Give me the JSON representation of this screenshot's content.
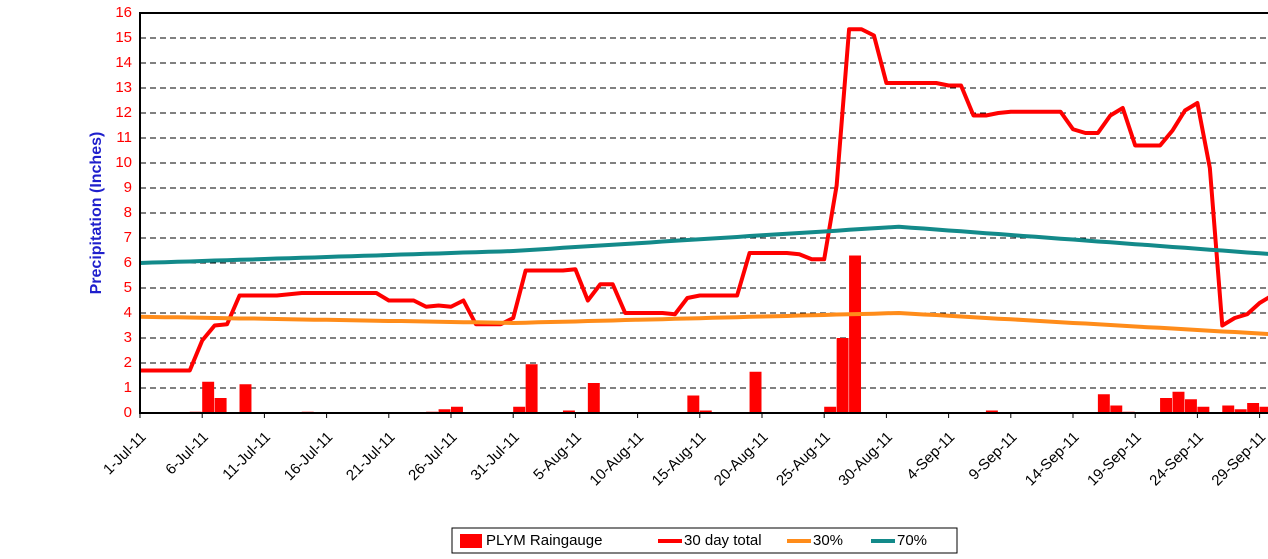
{
  "chart_data": {
    "type": "combo",
    "ylabel": "Precipitation (Inches)",
    "categories": [
      "1-Jul-11",
      null,
      null,
      null,
      null,
      "6-Jul-11",
      null,
      null,
      null,
      null,
      "11-Jul-11",
      null,
      null,
      null,
      null,
      "16-Jul-11",
      null,
      null,
      null,
      null,
      "21-Jul-11",
      null,
      null,
      null,
      null,
      "26-Jul-11",
      null,
      null,
      null,
      null,
      "31-Jul-11",
      null,
      null,
      null,
      null,
      "5-Aug-11",
      null,
      null,
      null,
      null,
      "10-Aug-11",
      null,
      null,
      null,
      null,
      "15-Aug-11",
      null,
      null,
      null,
      null,
      "20-Aug-11",
      null,
      null,
      null,
      null,
      "25-Aug-11",
      null,
      null,
      null,
      null,
      "30-Aug-11",
      null,
      null,
      null,
      null,
      "4-Sep-11",
      null,
      null,
      null,
      null,
      "9-Sep-11",
      null,
      null,
      null,
      null,
      "14-Sep-11",
      null,
      null,
      null,
      null,
      "19-Sep-11",
      null,
      null,
      null,
      null,
      "24-Sep-11",
      null,
      null,
      null,
      null,
      "29-Sep-11",
      null
    ],
    "series": [
      {
        "name": "PLYM Raingauge",
        "type": "bar",
        "color": "#ff0000",
        "values": [
          0,
          0,
          0,
          0,
          0.05,
          1.25,
          0.6,
          0,
          1.15,
          0,
          0,
          0,
          0,
          0.05,
          0,
          0,
          0,
          0,
          0,
          0,
          0,
          0,
          0,
          0.05,
          0.15,
          0.25,
          0,
          0,
          0,
          0,
          0.25,
          1.95,
          0,
          0,
          0.1,
          0,
          1.2,
          0,
          0,
          0,
          0,
          0,
          0,
          0,
          0.7,
          0.1,
          0,
          0,
          0,
          1.65,
          0,
          0,
          0,
          0,
          0,
          0.25,
          3.0,
          6.3,
          0,
          0,
          0.02,
          0,
          0,
          0,
          0,
          0,
          0,
          0,
          0.1,
          0,
          0,
          0,
          0,
          0,
          0,
          0,
          0,
          0.75,
          0.3,
          0.05,
          0,
          0,
          0.6,
          0.85,
          0.55,
          0.25,
          0,
          0.3,
          0.15,
          0.4,
          0.25,
          0
        ]
      },
      {
        "name": "30 day total",
        "type": "line",
        "color": "#ff0000",
        "values": [
          1.7,
          1.7,
          1.7,
          1.7,
          1.7,
          2.9,
          3.5,
          3.55,
          4.7,
          4.7,
          4.7,
          4.7,
          4.75,
          4.8,
          4.8,
          4.8,
          4.8,
          4.8,
          4.8,
          4.8,
          4.5,
          4.5,
          4.5,
          4.25,
          4.3,
          4.25,
          4.5,
          3.55,
          3.55,
          3.55,
          3.8,
          5.7,
          5.7,
          5.7,
          5.7,
          5.75,
          4.5,
          5.15,
          5.15,
          4.0,
          4.0,
          4.0,
          4.0,
          3.95,
          4.6,
          4.7,
          4.7,
          4.7,
          4.7,
          6.4,
          6.4,
          6.4,
          6.4,
          6.35,
          6.15,
          6.15,
          9.1,
          15.35,
          15.35,
          15.1,
          13.2,
          13.2,
          13.2,
          13.2,
          13.2,
          13.1,
          13.1,
          11.9,
          11.9,
          12.0,
          12.05,
          12.05,
          12.05,
          12.05,
          12.05,
          11.35,
          11.2,
          11.2,
          11.9,
          12.2,
          10.7,
          10.7,
          10.7,
          11.3,
          12.1,
          12.4,
          9.8,
          3.5,
          3.8,
          3.95,
          4.4,
          4.7
        ]
      },
      {
        "name": "30%",
        "type": "line",
        "color": "#ff8c1a",
        "values": [
          3.85,
          3.84,
          3.83,
          3.83,
          3.82,
          3.81,
          3.8,
          3.79,
          3.78,
          3.78,
          3.77,
          3.76,
          3.75,
          3.74,
          3.73,
          3.73,
          3.72,
          3.71,
          3.7,
          3.69,
          3.68,
          3.68,
          3.67,
          3.66,
          3.65,
          3.64,
          3.63,
          3.63,
          3.62,
          3.61,
          3.6,
          3.61,
          3.63,
          3.64,
          3.65,
          3.66,
          3.68,
          3.69,
          3.7,
          3.72,
          3.73,
          3.74,
          3.75,
          3.77,
          3.78,
          3.79,
          3.81,
          3.82,
          3.83,
          3.85,
          3.86,
          3.87,
          3.88,
          3.9,
          3.91,
          3.92,
          3.94,
          3.95,
          3.96,
          3.97,
          3.99,
          4.0,
          3.97,
          3.94,
          3.92,
          3.89,
          3.86,
          3.83,
          3.8,
          3.77,
          3.75,
          3.72,
          3.69,
          3.66,
          3.63,
          3.6,
          3.58,
          3.55,
          3.52,
          3.49,
          3.46,
          3.43,
          3.41,
          3.38,
          3.35,
          3.32,
          3.29,
          3.26,
          3.24,
          3.21,
          3.18,
          3.15
        ]
      },
      {
        "name": "70%",
        "type": "line",
        "color": "#138a8a",
        "values": [
          6.0,
          6.02,
          6.03,
          6.05,
          6.06,
          6.08,
          6.1,
          6.11,
          6.13,
          6.14,
          6.16,
          6.18,
          6.19,
          6.21,
          6.22,
          6.24,
          6.26,
          6.27,
          6.29,
          6.3,
          6.32,
          6.34,
          6.35,
          6.37,
          6.38,
          6.4,
          6.42,
          6.43,
          6.45,
          6.46,
          6.48,
          6.51,
          6.54,
          6.57,
          6.61,
          6.64,
          6.67,
          6.7,
          6.73,
          6.76,
          6.79,
          6.82,
          6.86,
          6.89,
          6.92,
          6.95,
          6.98,
          7.01,
          7.04,
          7.08,
          7.11,
          7.14,
          7.17,
          7.2,
          7.23,
          7.26,
          7.29,
          7.33,
          7.36,
          7.39,
          7.42,
          7.45,
          7.41,
          7.38,
          7.34,
          7.3,
          7.27,
          7.23,
          7.19,
          7.16,
          7.12,
          7.08,
          7.05,
          7.01,
          6.97,
          6.94,
          6.9,
          6.86,
          6.83,
          6.79,
          6.75,
          6.72,
          6.68,
          6.64,
          6.61,
          6.57,
          6.53,
          6.5,
          6.46,
          6.42,
          6.39,
          6.35
        ]
      }
    ],
    "ylim": [
      0,
      16
    ],
    "yticks": [
      0,
      1,
      2,
      3,
      4,
      5,
      6,
      7,
      8,
      9,
      10,
      11,
      12,
      13,
      14,
      15,
      16
    ],
    "grid": true,
    "legend": "bottom"
  }
}
